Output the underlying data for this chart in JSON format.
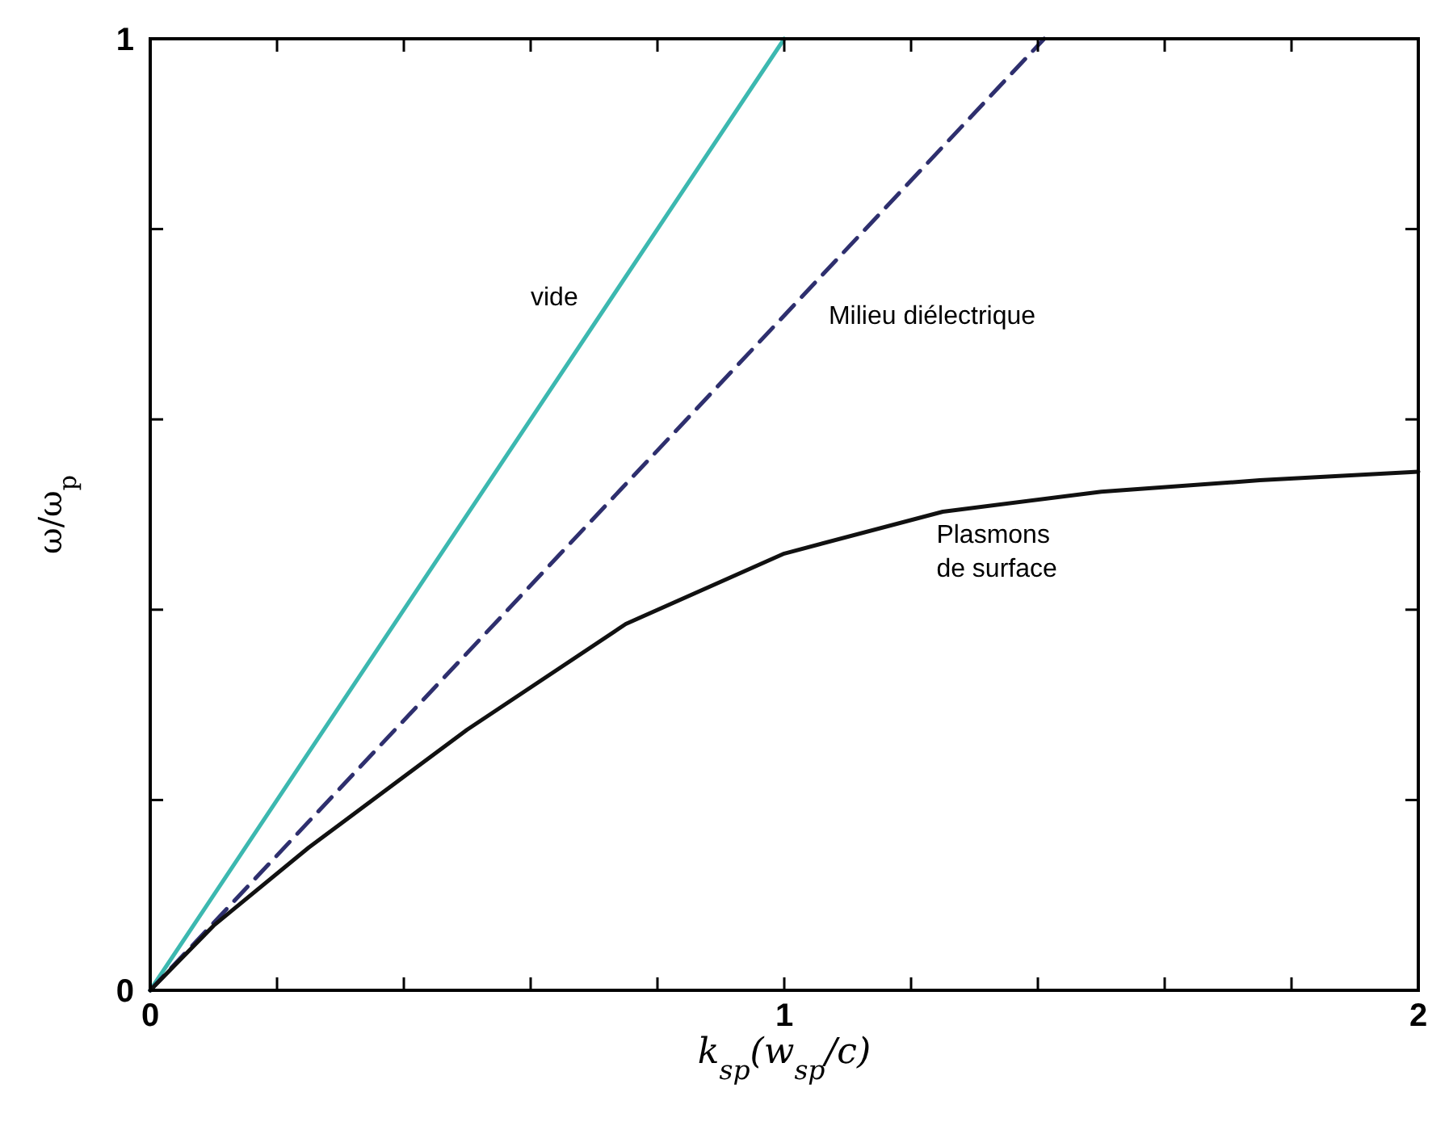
{
  "chart_data": {
    "type": "line",
    "xlabel": "k$_{sp}$(w$_{sp}$/c)",
    "ylabel": "ω/ω$_{p}$",
    "xlim": [
      0,
      2
    ],
    "ylim": [
      0,
      1
    ],
    "xticks": [
      0,
      {
        "value": 0.2,
        "label": null
      },
      {
        "value": 0.4,
        "label": null
      },
      {
        "value": 0.6,
        "label": null
      },
      {
        "value": 0.8,
        "label": null
      },
      1,
      {
        "value": 1.2,
        "label": null
      },
      {
        "value": 1.4,
        "label": null
      },
      {
        "value": 1.6,
        "label": null
      },
      {
        "value": 1.8,
        "label": null
      },
      2
    ],
    "yticks": [
      0,
      {
        "value": 0.2,
        "label": null
      },
      {
        "value": 0.4,
        "label": null
      },
      {
        "value": 0.6,
        "label": null
      },
      {
        "value": 0.8,
        "label": null
      },
      1
    ],
    "grid": false,
    "series": [
      {
        "name": "vide",
        "color": "#3cb8b0",
        "line_style": "solid",
        "x": [
          0,
          1
        ],
        "values": [
          0,
          1
        ]
      },
      {
        "name": "Milieu diélectrique",
        "color": "#2e2f6e",
        "line_style": "dashed",
        "x": [
          0,
          1.41
        ],
        "values": [
          0,
          1
        ]
      },
      {
        "name": "Plasmons\nde surface",
        "color": "#111111",
        "line_style": "solid",
        "x": [
          0,
          0.1,
          0.25,
          0.5,
          0.75,
          1,
          1.25,
          1.5,
          1.75,
          2
        ],
        "values": [
          0,
          0.068,
          0.15,
          0.274,
          0.385,
          0.459,
          0.503,
          0.524,
          0.536,
          0.545
        ]
      }
    ]
  }
}
